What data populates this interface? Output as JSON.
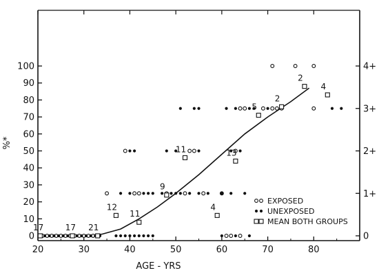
{
  "chart_data": {
    "type": "scatter",
    "xlabel": "AGE - YRS",
    "ylabel": "%*",
    "xlim": [
      20,
      90
    ],
    "ylim": [
      0,
      110
    ],
    "x_ticks": [
      "20",
      "30",
      "40",
      "50",
      "60",
      "70",
      "80"
    ],
    "y_ticks": [
      "0",
      "10",
      "20",
      "30",
      "40",
      "50",
      "60",
      "70",
      "80",
      "90",
      "100"
    ],
    "right_axis_ticks": [
      {
        "y": 0,
        "label": "0"
      },
      {
        "y": 25,
        "label": "1+"
      },
      {
        "y": 50,
        "label": "2+"
      },
      {
        "y": 75,
        "label": "3+"
      },
      {
        "y": 100,
        "label": "4+"
      }
    ],
    "legend": {
      "position": "bottom-right",
      "entries": [
        {
          "marker": "open-circle",
          "label": "EXPOSED"
        },
        {
          "marker": "filled-dot",
          "label": "UNEXPOSED"
        },
        {
          "marker": "open-square",
          "label": "MEAN BOTH GROUPS"
        }
      ]
    },
    "series": [
      {
        "marker": "open-circle",
        "points": [
          [
            21,
            0
          ],
          [
            22,
            0
          ],
          [
            23,
            0
          ],
          [
            24,
            0
          ],
          [
            25,
            0
          ],
          [
            26,
            0
          ],
          [
            27,
            0
          ],
          [
            28,
            0
          ],
          [
            29,
            0
          ],
          [
            30,
            0
          ],
          [
            31,
            0
          ],
          [
            32,
            0
          ],
          [
            33,
            0
          ],
          [
            35,
            25
          ],
          [
            39,
            50
          ],
          [
            41,
            25
          ],
          [
            42,
            25
          ],
          [
            48,
            25
          ],
          [
            52,
            25
          ],
          [
            53,
            50
          ],
          [
            54,
            50
          ],
          [
            56,
            25
          ],
          [
            60,
            25
          ],
          [
            61,
            0
          ],
          [
            62,
            0
          ],
          [
            64,
            0
          ],
          [
            63,
            50
          ],
          [
            64,
            75
          ],
          [
            65,
            75
          ],
          [
            69,
            75
          ],
          [
            71,
            75
          ],
          [
            72,
            75
          ],
          [
            73,
            75
          ],
          [
            71,
            100
          ],
          [
            76,
            100
          ],
          [
            80,
            100
          ],
          [
            80,
            75
          ]
        ]
      },
      {
        "marker": "filled-dot",
        "points": [
          [
            20.5,
            0
          ],
          [
            21.5,
            0
          ],
          [
            22.5,
            0
          ],
          [
            23.5,
            0
          ],
          [
            24.5,
            0
          ],
          [
            25.5,
            0
          ],
          [
            26.5,
            0
          ],
          [
            27.5,
            0
          ],
          [
            28.5,
            0
          ],
          [
            29.5,
            0
          ],
          [
            30.5,
            0
          ],
          [
            31.5,
            0
          ],
          [
            32.5,
            0
          ],
          [
            33.5,
            0
          ],
          [
            37,
            0
          ],
          [
            38,
            0
          ],
          [
            39,
            0
          ],
          [
            40,
            0
          ],
          [
            41,
            0
          ],
          [
            42,
            0
          ],
          [
            43,
            0
          ],
          [
            44,
            0
          ],
          [
            45,
            0
          ],
          [
            38,
            25
          ],
          [
            40,
            25
          ],
          [
            43,
            25
          ],
          [
            44,
            25
          ],
          [
            45,
            25
          ],
          [
            47,
            25
          ],
          [
            49,
            25
          ],
          [
            50,
            25
          ],
          [
            51,
            25
          ],
          [
            53,
            25
          ],
          [
            55,
            25
          ],
          [
            57,
            25
          ],
          [
            60,
            25
          ],
          [
            62,
            25
          ],
          [
            65,
            25
          ],
          [
            40,
            50
          ],
          [
            41,
            50
          ],
          [
            48,
            50
          ],
          [
            50,
            50
          ],
          [
            55,
            50
          ],
          [
            62,
            50
          ],
          [
            64,
            50
          ],
          [
            51,
            75
          ],
          [
            54,
            75
          ],
          [
            55,
            75
          ],
          [
            61,
            75
          ],
          [
            63,
            75
          ],
          [
            66,
            75
          ],
          [
            67,
            75
          ],
          [
            70,
            75
          ],
          [
            60,
            0
          ],
          [
            63,
            0
          ],
          [
            66,
            0
          ],
          [
            84,
            75
          ],
          [
            86,
            75
          ]
        ]
      },
      {
        "marker": "open-square",
        "points": [
          [
            20.5,
            0
          ],
          [
            27.5,
            0
          ],
          [
            33,
            0
          ],
          [
            37,
            12
          ],
          [
            42,
            8
          ],
          [
            48,
            24
          ],
          [
            52,
            46
          ],
          [
            59,
            12
          ],
          [
            63,
            44
          ],
          [
            68,
            71
          ],
          [
            73,
            76
          ],
          [
            78,
            88
          ],
          [
            83,
            83
          ]
        ]
      }
    ],
    "trend_line": {
      "x": [
        20,
        25,
        30,
        34,
        38,
        42,
        46,
        50,
        55,
        60,
        65,
        70,
        75,
        79
      ],
      "y": [
        0,
        0,
        0,
        1,
        4,
        10,
        17,
        25,
        36,
        48,
        60,
        70,
        79,
        87
      ]
    },
    "point_labels": [
      {
        "x": 21,
        "y": 0,
        "label": "17"
      },
      {
        "x": 28,
        "y": 0,
        "label": "17"
      },
      {
        "x": 33,
        "y": 0,
        "label": "21"
      },
      {
        "x": 37,
        "y": 12,
        "label": "12"
      },
      {
        "x": 42,
        "y": 8,
        "label": "11"
      },
      {
        "x": 48,
        "y": 24,
        "label": "9"
      },
      {
        "x": 52,
        "y": 46,
        "label": "11"
      },
      {
        "x": 59,
        "y": 12,
        "label": "4"
      },
      {
        "x": 63,
        "y": 44,
        "label": "13"
      },
      {
        "x": 68,
        "y": 71,
        "label": "5"
      },
      {
        "x": 73,
        "y": 76,
        "label": "2"
      },
      {
        "x": 78,
        "y": 88,
        "label": "2"
      },
      {
        "x": 83,
        "y": 83,
        "label": "4"
      }
    ]
  }
}
